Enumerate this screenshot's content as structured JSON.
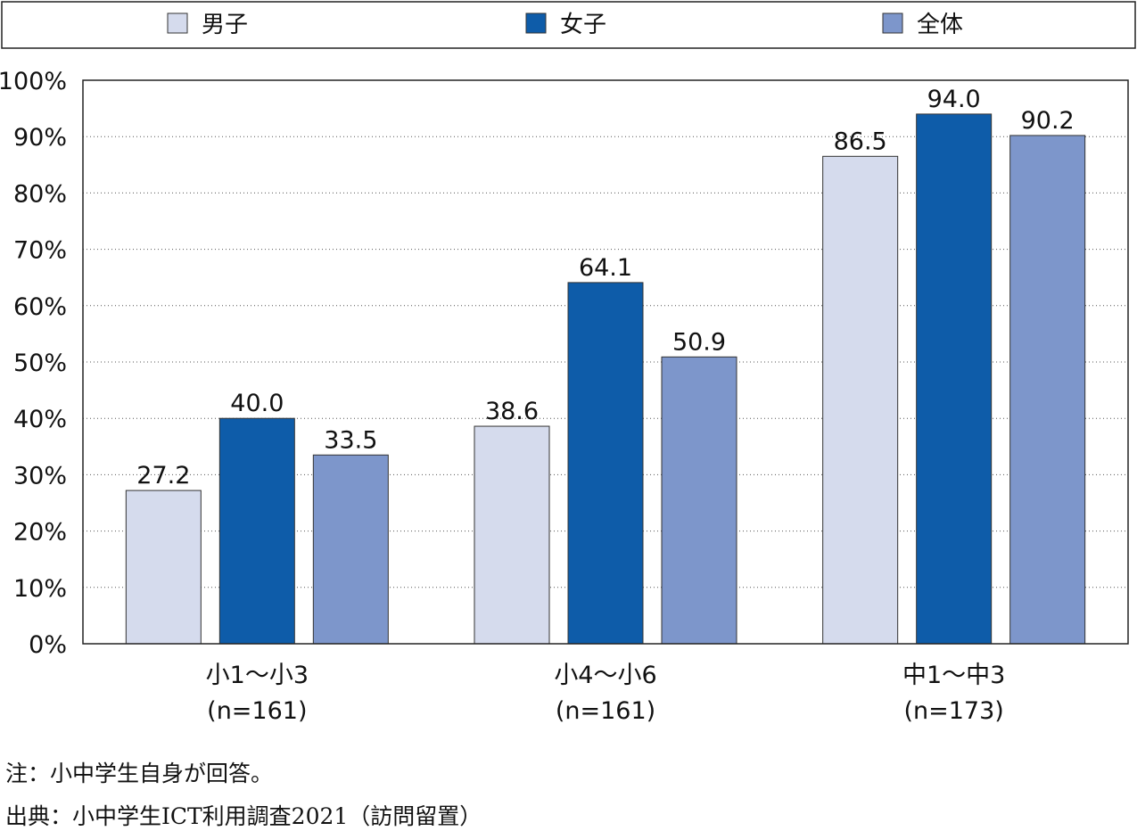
{
  "chart_data": {
    "type": "bar",
    "categories": [
      "小1～小3\n(n=161)",
      "小4～小6\n(n=161)",
      "中1～中3\n(n=173)"
    ],
    "series": [
      {
        "name": "男子",
        "values": [
          27.2,
          38.6,
          86.5
        ],
        "color": "#d5dbed"
      },
      {
        "name": "女子",
        "values": [
          40.0,
          64.1,
          94.0
        ],
        "color": "#0e5ca9"
      },
      {
        "name": "全体",
        "values": [
          33.5,
          50.9,
          90.2
        ],
        "color": "#7d96cb"
      }
    ],
    "ylim": [
      0,
      100
    ],
    "yticks": [
      "0%",
      "10%",
      "20%",
      "30%",
      "40%",
      "50%",
      "60%",
      "70%",
      "80%",
      "90%",
      "100%"
    ],
    "grid": true,
    "legend": "top",
    "data_labels": true
  },
  "notes": {
    "note1": "注：小中学生自身が回答。",
    "note2": "出典：小中学生ICT利用調査2021（訪問留置）"
  }
}
